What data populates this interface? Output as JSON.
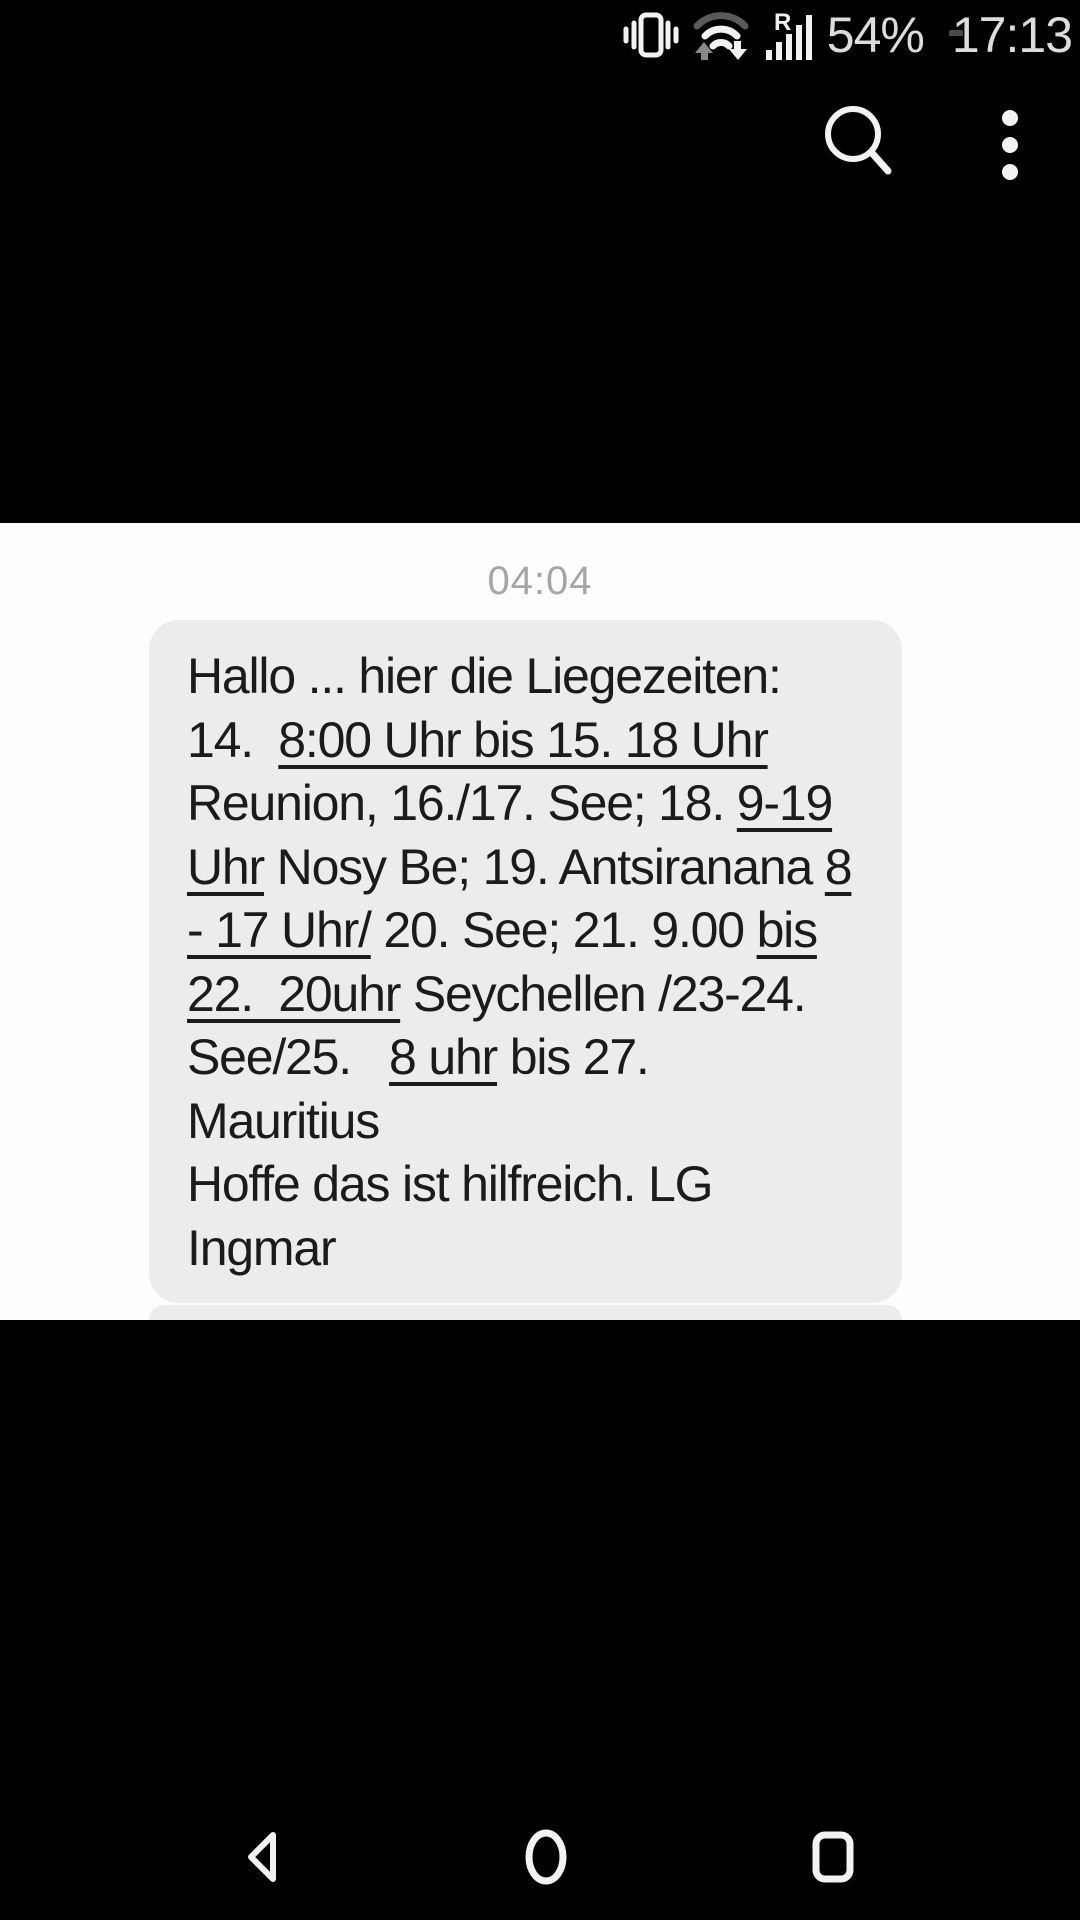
{
  "status_bar": {
    "battery_percent": "54%",
    "time": "17:13",
    "roaming_indicator": "R",
    "icons": [
      "vibrate-icon",
      "wifi-up-down-icon",
      "signal-strength-icon",
      "battery-icon"
    ]
  },
  "app_bar": {
    "icons": [
      "search-icon",
      "overflow-menu-icon"
    ]
  },
  "conversation": {
    "timestamp": "04:04",
    "bubble_lines": [
      [
        {
          "t": "Hallo ... hier die Liegezeiten:",
          "u": false
        }
      ],
      [
        {
          "t": "14.  ",
          "u": false
        },
        {
          "t": "8:00 Uhr bis 15. 18 Uhr",
          "u": true
        }
      ],
      [
        {
          "t": "Reunion, 16./17. See; 18. ",
          "u": false
        },
        {
          "t": "9-19",
          "u": true
        }
      ],
      [
        {
          "t": "Uhr",
          "u": true
        },
        {
          "t": " Nosy Be; 19. Antsiranana ",
          "u": false
        },
        {
          "t": "8",
          "u": true
        }
      ],
      [
        {
          "t": "- 17 Uhr/",
          "u": true
        },
        {
          "t": " 20. See; 21. 9.00 ",
          "u": false
        },
        {
          "t": "bis",
          "u": true
        }
      ],
      [
        {
          "t": "22.  20uhr",
          "u": true
        },
        {
          "t": " Seychellen /23-24.",
          "u": false
        }
      ],
      [
        {
          "t": "See/25.   ",
          "u": false
        },
        {
          "t": "8 uhr",
          "u": true
        },
        {
          "t": " bis 27.",
          "u": false
        }
      ],
      [
        {
          "t": "Mauritius",
          "u": false
        }
      ],
      [
        {
          "t": "Hoffe das ist hilfreich. LG",
          "u": false
        }
      ],
      [
        {
          "t": "Ingmar",
          "u": false
        }
      ]
    ]
  },
  "nav_bar": {
    "icons": [
      "back-icon",
      "home-icon",
      "recents-icon"
    ]
  },
  "colors": {
    "page_bg": "#000000",
    "image_bg": "#fdfdfd",
    "bubble_bg": "#ececec",
    "text": "#1b1b1b",
    "timestamp": "#a6a6a6",
    "status_text": "#dcdcdc"
  }
}
